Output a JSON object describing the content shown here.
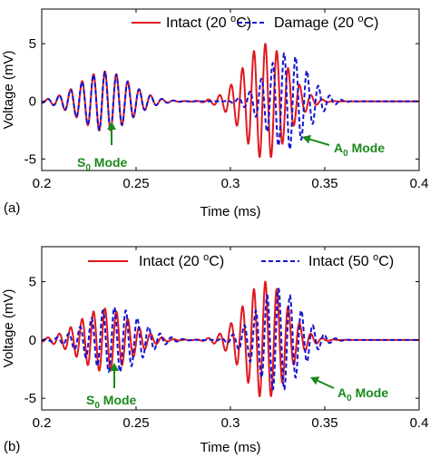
{
  "colors": {
    "intact": "#e0191f",
    "damage": "#1414d4",
    "annotation": "#1a8a1a"
  },
  "chart_data": [
    {
      "type": "line",
      "panel_label": "(a)",
      "xlabel": "Time (ms)",
      "ylabel": "Voltage (mV)",
      "xlim": [
        0.2,
        0.4
      ],
      "ylim": [
        -6,
        8
      ],
      "xticks": [
        0.2,
        0.25,
        0.3,
        0.35,
        0.4
      ],
      "xtick_labels": [
        "0.2",
        "0.25",
        "0.3",
        "0.35",
        "0.4"
      ],
      "yticks": [
        -5,
        0,
        5
      ],
      "ytick_labels": [
        "-5",
        "0",
        "5"
      ],
      "legend_position": "top",
      "series": [
        {
          "name_parts": [
            "Intact (20 ",
            "o",
            "C)"
          ],
          "color": "#e0191f",
          "style": "solid",
          "packets": [
            {
              "t0": 0.2335,
              "amp": 2.6,
              "sigma": 0.0135,
              "freq": 165,
              "phase": 0
            },
            {
              "t0": 0.3185,
              "amp": 5.0,
              "sigma": 0.0115,
              "freq": 165,
              "phase": 0
            }
          ]
        },
        {
          "name_parts": [
            "Damage (20 ",
            "o",
            "C)"
          ],
          "color": "#1414d4",
          "style": "dashed",
          "packets": [
            {
              "t0": 0.2335,
              "amp": 2.55,
              "sigma": 0.0135,
              "freq": 165,
              "phase": 0.05
            },
            {
              "t0": 0.33,
              "amp": 4.2,
              "sigma": 0.011,
              "freq": 165,
              "phase": 1.6
            }
          ]
        }
      ],
      "annotations": [
        {
          "label": "S",
          "sub": "0",
          "rest": " Mode",
          "x": 0.24,
          "y": -2.6,
          "direction": "up"
        },
        {
          "label": "A",
          "sub": "0",
          "rest": " Mode",
          "x": 0.337,
          "y": -3.7,
          "direction": "left"
        }
      ]
    },
    {
      "type": "line",
      "panel_label": "(b)",
      "xlabel": "Time (ms)",
      "ylabel": "Voltage (mV)",
      "xlim": [
        0.2,
        0.4
      ],
      "ylim": [
        -6,
        8
      ],
      "xticks": [
        0.2,
        0.25,
        0.3,
        0.35,
        0.4
      ],
      "xtick_labels": [
        "0.2",
        "0.25",
        "0.3",
        "0.35",
        "0.4"
      ],
      "yticks": [
        -5,
        0,
        5
      ],
      "ytick_labels": [
        "-5",
        "0",
        "5"
      ],
      "legend_position": "top",
      "series": [
        {
          "name_parts": [
            "Intact (20 ",
            "o",
            "C)"
          ],
          "color": "#e0191f",
          "style": "solid",
          "packets": [
            {
              "t0": 0.2335,
              "amp": 2.7,
              "sigma": 0.0135,
              "freq": 165,
              "phase": 0
            },
            {
              "t0": 0.3185,
              "amp": 5.0,
              "sigma": 0.0115,
              "freq": 165,
              "phase": 0
            }
          ]
        },
        {
          "name_parts": [
            "Intact (50 ",
            "o",
            "C)"
          ],
          "color": "#1414d4",
          "style": "dashed",
          "packets": [
            {
              "t0": 0.2385,
              "amp": 2.8,
              "sigma": 0.0135,
              "freq": 165,
              "phase": 0
            },
            {
              "t0": 0.3255,
              "amp": 4.4,
              "sigma": 0.0115,
              "freq": 165,
              "phase": 0
            }
          ]
        }
      ],
      "annotations": [
        {
          "label": "S",
          "sub": "0",
          "rest": " Mode",
          "x": 0.24,
          "y": -2.8,
          "direction": "up"
        },
        {
          "label": "A",
          "sub": "0",
          "rest": " Mode",
          "x": 0.339,
          "y": -3.6,
          "direction": "left"
        }
      ]
    }
  ]
}
